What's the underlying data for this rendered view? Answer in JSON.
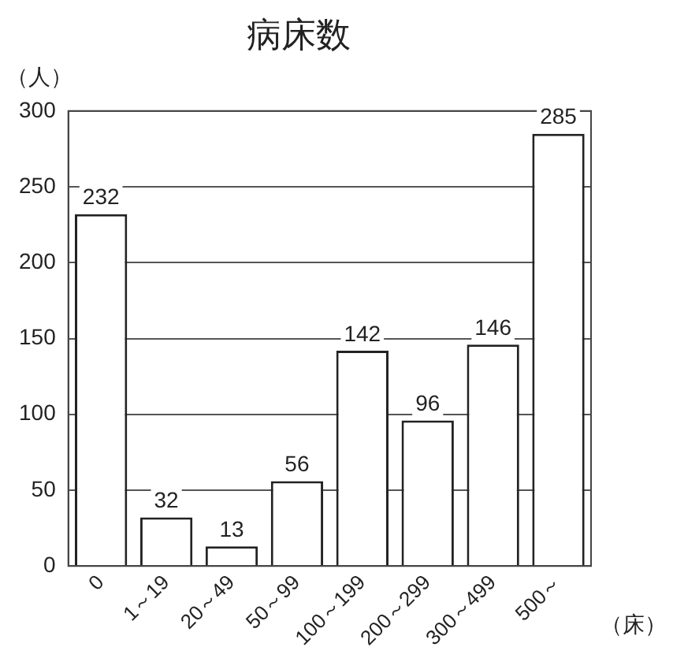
{
  "chart_data": {
    "type": "bar",
    "title": "病床数",
    "ylabel": "（人）",
    "xlabel": "（床）",
    "categories": [
      "0",
      "1～19",
      "20～49",
      "50～99",
      "100～199",
      "200～299",
      "300～499",
      "500～"
    ],
    "values": [
      232,
      32,
      13,
      56,
      142,
      96,
      146,
      285
    ],
    "color": "#ffffff",
    "ylim": [
      0,
      300
    ],
    "yticks": [
      0,
      50,
      100,
      150,
      200,
      250,
      300
    ],
    "grid": "y",
    "data_labels": true,
    "legend": false
  }
}
